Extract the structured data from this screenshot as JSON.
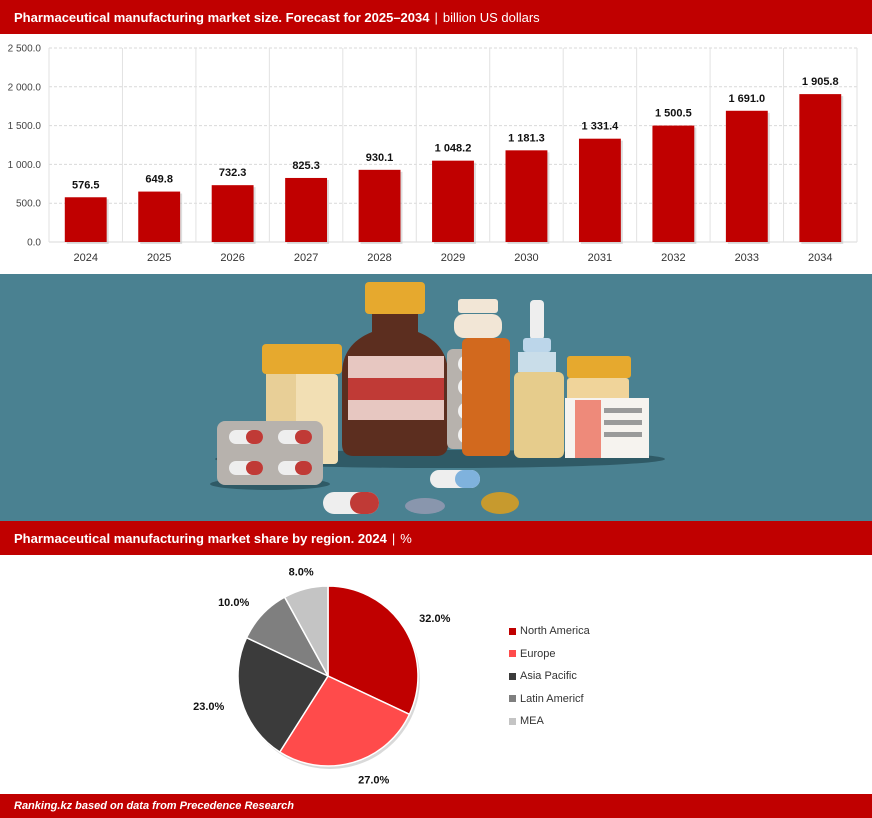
{
  "header_bar": {
    "title": "Pharmaceutical manufacturing market size. Forecast for 2025–2034",
    "separator": "|",
    "unit": "billion US dollars"
  },
  "header_pie": {
    "title": "Pharmaceutical manufacturing market share by region. 2024",
    "separator": "|",
    "unit": "%"
  },
  "footer": {
    "source": "Ranking.kz based on data from Precedence Research"
  },
  "colors": {
    "accent": "#c00000",
    "bar": "#c00000",
    "illustration_bg": "#4a8191"
  },
  "chart_data": [
    {
      "type": "bar",
      "categories": [
        "2024",
        "2025",
        "2026",
        "2027",
        "2028",
        "2029",
        "2030",
        "2031",
        "2032",
        "2033",
        "2034"
      ],
      "values": [
        576.5,
        649.8,
        732.3,
        825.3,
        930.1,
        1048.2,
        1181.3,
        1331.4,
        1500.5,
        1691.0,
        1905.8
      ],
      "value_labels": [
        "576.5",
        "649.8",
        "732.3",
        "825.3",
        "930.1",
        "1 048.2",
        "1 181.3",
        "1 331.4",
        "1 500.5",
        "1 691.0",
        "1 905.8"
      ],
      "ylim": [
        0,
        2500
      ],
      "yticks": [
        0,
        500,
        1000,
        1500,
        2000,
        2500
      ],
      "ytick_labels": [
        "0.0",
        "500.0",
        "1 000.0",
        "1 500.0",
        "2 000.0",
        "2 500.0"
      ],
      "grid": true
    },
    {
      "type": "pie",
      "labels": [
        "North America",
        "Europe",
        "Asia Pacific",
        "Latin Americf",
        "MEA"
      ],
      "values": [
        32.0,
        27.0,
        23.0,
        10.0,
        8.0
      ],
      "value_labels": [
        "32.0%",
        "27.0%",
        "23.0%",
        "10.0%",
        "8.0%"
      ],
      "colors": [
        "#c00000",
        "#ff4b4b",
        "#3b3b3b",
        "#7f7f7f",
        "#c4c4c4"
      ],
      "legend_position": "right"
    }
  ]
}
